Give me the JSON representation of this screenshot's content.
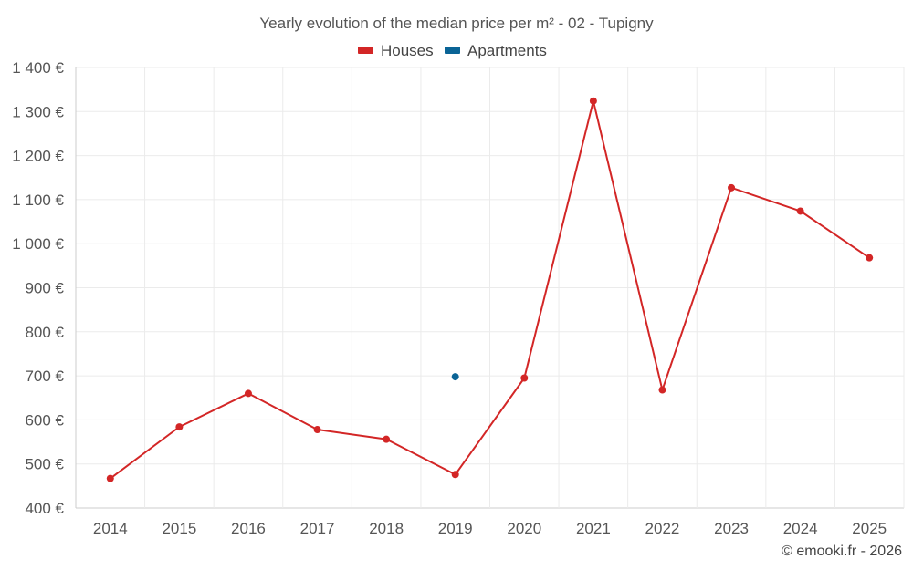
{
  "chart_data": {
    "type": "line",
    "title": "Yearly evolution of the median price per m² - 02 - Tupigny",
    "xlabel": "",
    "ylabel": "",
    "categories": [
      "2014",
      "2015",
      "2016",
      "2017",
      "2018",
      "2019",
      "2020",
      "2021",
      "2022",
      "2023",
      "2024",
      "2025"
    ],
    "ylim": [
      400,
      1400
    ],
    "yticks": [
      400,
      500,
      600,
      700,
      800,
      900,
      1000,
      1100,
      1200,
      1300,
      1400
    ],
    "ytick_labels": [
      "400 €",
      "500 €",
      "600 €",
      "700 €",
      "800 €",
      "900 €",
      "1 000 €",
      "1 100 €",
      "1 200 €",
      "1 300 €",
      "1 400 €"
    ],
    "grid": true,
    "legend_position": "top-center",
    "series": [
      {
        "name": "Houses",
        "color": "#d32626",
        "values": [
          467,
          584,
          660,
          578,
          556,
          476,
          695,
          1324,
          668,
          1127,
          1074,
          968
        ]
      },
      {
        "name": "Apartments",
        "color": "#0a6496",
        "values": [
          null,
          null,
          null,
          null,
          null,
          698,
          null,
          null,
          null,
          null,
          null,
          null
        ]
      }
    ]
  },
  "credit": "© emooki.fr - 2026"
}
